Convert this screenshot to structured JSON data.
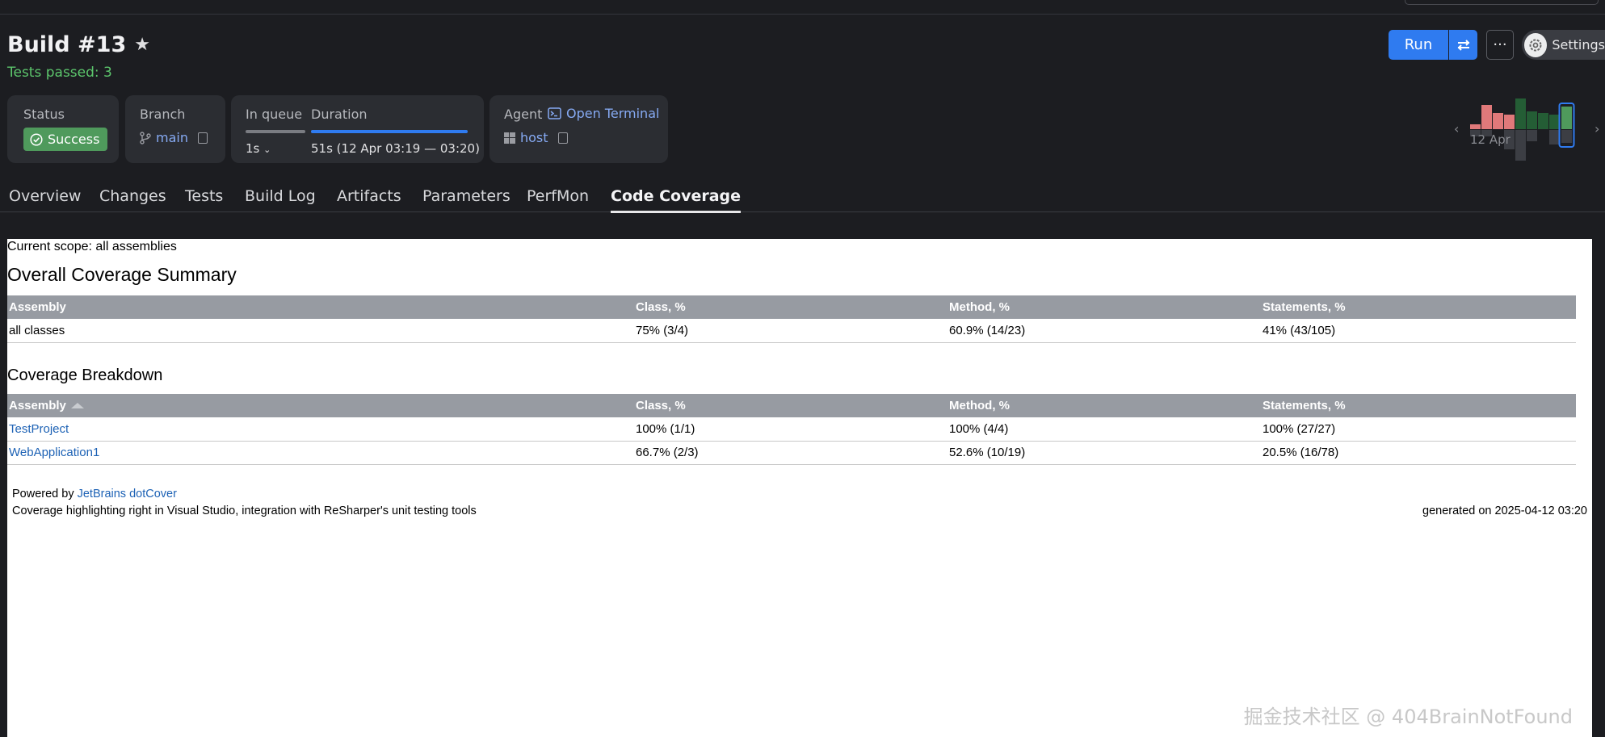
{
  "header": {
    "title": "Build #13",
    "subtitle": "Tests passed: 3",
    "run_label": "Run",
    "more_label": "···",
    "settings_label": "Settings"
  },
  "cards": {
    "status": {
      "label": "Status",
      "value": "Success"
    },
    "branch": {
      "label": "Branch",
      "value": "main"
    },
    "queue": {
      "label": "In queue",
      "value": "1s"
    },
    "duration": {
      "label": "Duration",
      "value": "51s (12 Apr 03:19 — 03:20)",
      "progress": 1.0
    },
    "agent": {
      "label": "Agent",
      "terminal_label": "Open Terminal",
      "host": "host"
    }
  },
  "history": {
    "date_label": "12 Apr"
  },
  "tabs": [
    "Overview",
    "Changes",
    "Tests",
    "Build Log",
    "Artifacts",
    "Parameters",
    "PerfMon",
    "Code Coverage"
  ],
  "active_tab": "Code Coverage",
  "report": {
    "scope": "Current scope: all assemblies",
    "summary_title": "Overall Coverage Summary",
    "breakdown_title": "Coverage Breakdown",
    "columns": [
      "Assembly",
      "Class, %",
      "Method, %",
      "Statements, %"
    ],
    "summary_rows": [
      [
        "all classes",
        "75% (3/4)",
        "60.9% (14/23)",
        "41% (43/105)"
      ]
    ],
    "breakdown_rows": [
      [
        "TestProject",
        "100% (1/1)",
        "100% (4/4)",
        "100% (27/27)"
      ],
      [
        "WebApplication1",
        "66.7% (2/3)",
        "52.6% (10/19)",
        "20.5% (16/78)"
      ]
    ],
    "powered_prefix": "Powered by ",
    "powered_link": "JetBrains dotCover",
    "tagline": "Coverage highlighting right in Visual Studio, integration with ReSharper's unit testing tools",
    "generated": "generated on 2025-04-12 03:20"
  },
  "watermark": "掘金技术社区 @ 404BrainNotFound",
  "colors": {
    "accent": "#2f7bf0",
    "success": "#4f9a5c",
    "passed_text": "#5cc56c",
    "link": "#86aaf3"
  }
}
